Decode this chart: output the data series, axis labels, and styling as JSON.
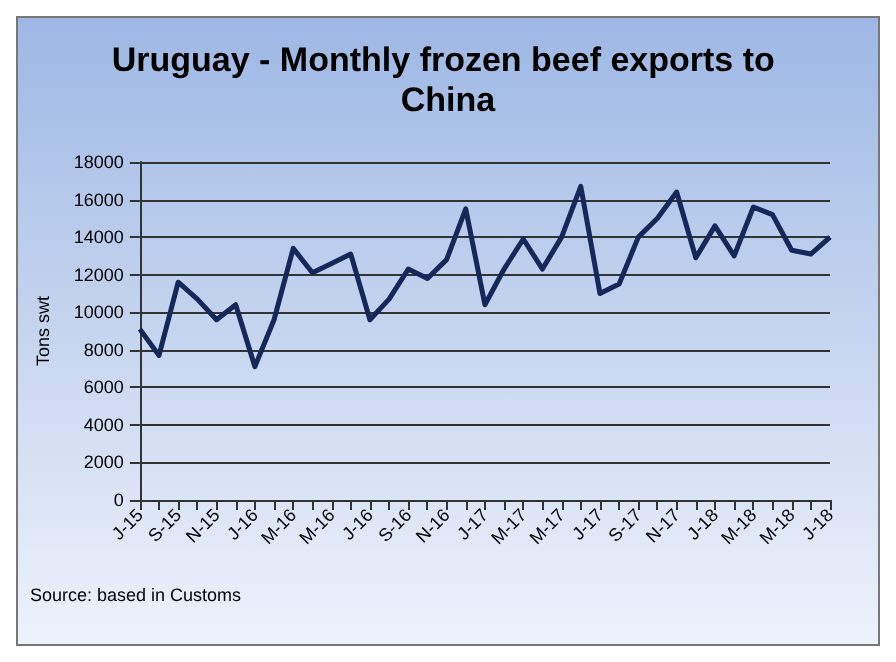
{
  "chart_data": {
    "type": "line",
    "title": "Uruguay - Monthly frozen beef exports to China",
    "ylabel": "Tons swt",
    "categories": [
      "J-15",
      null,
      "S-15",
      null,
      "N-15",
      null,
      "J-16",
      null,
      "M-16",
      null,
      "M-16",
      null,
      "J-16",
      null,
      "S-16",
      null,
      "N-16",
      null,
      "J-17",
      null,
      "M-17",
      null,
      "M-17",
      null,
      "J-17",
      null,
      "S-17",
      null,
      "N-17",
      null,
      "J-18",
      null,
      "M-18",
      null,
      "M-18",
      null,
      "J-18"
    ],
    "series": [
      {
        "color": "#14285a",
        "values": [
          9100,
          7700,
          11600,
          10700,
          9600,
          10400,
          7100,
          9600,
          13400,
          12100,
          12600,
          13100,
          9600,
          10700,
          12300,
          11800,
          12800,
          15500,
          10400,
          12300,
          13900,
          12300,
          14000,
          16700,
          11000,
          11500,
          14000,
          15000,
          16400,
          12900,
          14600,
          13000,
          15600,
          15200,
          13300,
          13100,
          14000
        ]
      }
    ],
    "ylim": [
      0,
      18000
    ],
    "yticks": [
      0,
      2000,
      4000,
      6000,
      8000,
      10000,
      12000,
      14000,
      16000,
      18000
    ],
    "grid": "y",
    "marker": "none",
    "line_style": "solid",
    "annotations": [
      "Source: based in Customs"
    ]
  }
}
